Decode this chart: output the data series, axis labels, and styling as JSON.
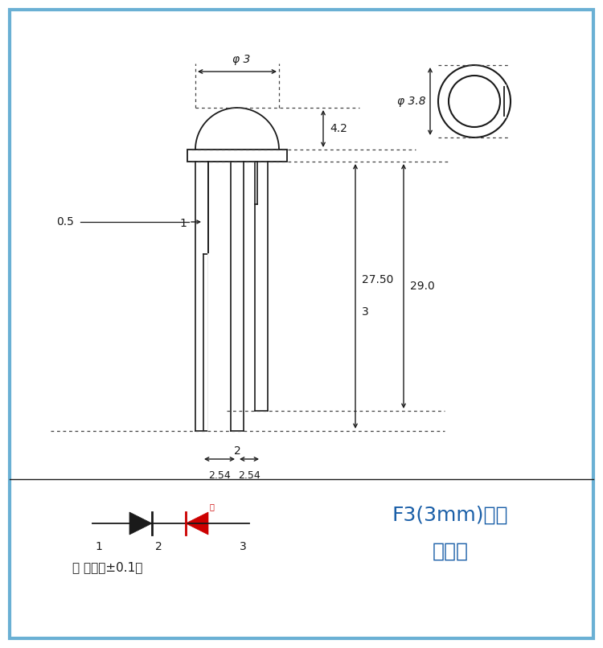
{
  "bg_color": "#ffffff",
  "border_color": "#6ab0d4",
  "title_line1": "F3(3mm)双色",
  "title_line2": "规格图",
  "error_text": "误 差：（±0.1）",
  "hong": "红",
  "dim_phi3": "φ 3",
  "dim_phi38": "φ 3.8",
  "dim_4_2": "4.2",
  "dim_27_50": "27.50",
  "dim_29_0": "29.0",
  "dim_0_5": "0.5",
  "dim_2_54a": "2.54",
  "dim_2_54b": "2.54",
  "label_1": "1",
  "label_2": "2",
  "label_3": "3",
  "line_color": "#1a1a1a",
  "dotted_color": "#444444",
  "red_color": "#cc0000",
  "blue_color": "#1a5fa8"
}
